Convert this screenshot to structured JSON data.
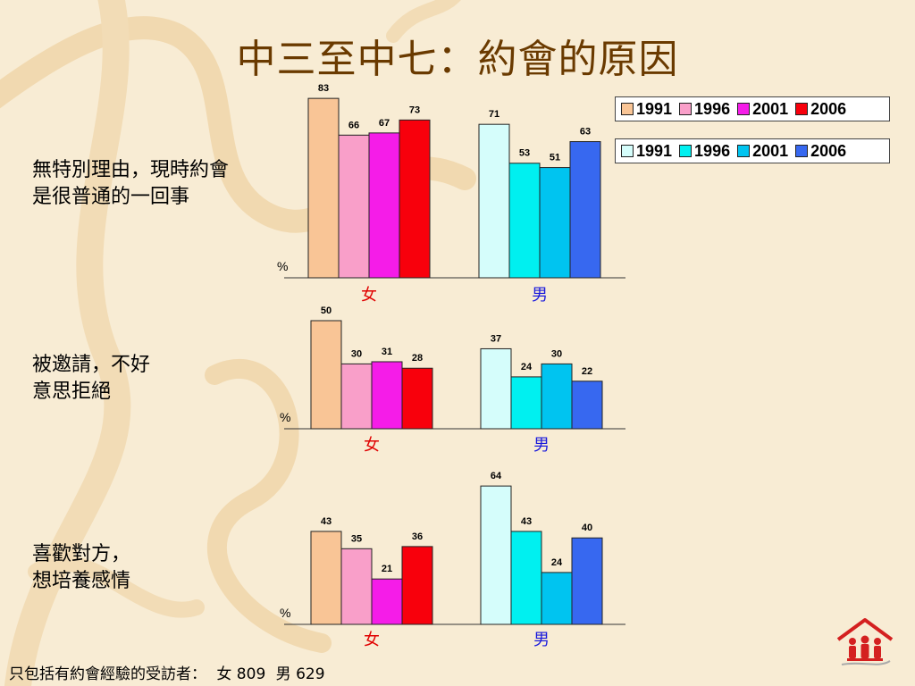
{
  "title": "中三至中七：約會的原因",
  "legend_female": {
    "items": [
      {
        "label": "1991",
        "color": "#f9c596"
      },
      {
        "label": "1996",
        "color": "#f99fc9"
      },
      {
        "label": "2001",
        "color": "#f51ce8"
      },
      {
        "label": "2006",
        "color": "#f8000c"
      }
    ]
  },
  "legend_male": {
    "items": [
      {
        "label": "1991",
        "color": "#d5fdfb"
      },
      {
        "label": "1996",
        "color": "#00f0f0"
      },
      {
        "label": "2001",
        "color": "#00c4f0"
      },
      {
        "label": "2006",
        "color": "#3768f0"
      }
    ]
  },
  "questions": [
    {
      "line1": "無特別理由，現時約會",
      "line2": "是很普通的一回事"
    },
    {
      "line1": "被邀請，不好",
      "line2": "意思拒絕"
    },
    {
      "line1": "喜歡對方，",
      "line2": "想培養感情"
    }
  ],
  "chart_data": [
    {
      "type": "bar",
      "ylabel": "%",
      "categories": [
        "女",
        "男"
      ],
      "category_colors": [
        "#e00000",
        "#1a1adc"
      ],
      "series": [
        {
          "name": "1991",
          "values": [
            83,
            71
          ]
        },
        {
          "name": "1996",
          "values": [
            66,
            53
          ]
        },
        {
          "name": "2001",
          "values": [
            67,
            51
          ]
        },
        {
          "name": "2006",
          "values": [
            73,
            63
          ]
        }
      ]
    },
    {
      "type": "bar",
      "ylabel": "%",
      "categories": [
        "女",
        "男"
      ],
      "category_colors": [
        "#e00000",
        "#1a1adc"
      ],
      "series": [
        {
          "name": "1991",
          "values": [
            50,
            37
          ]
        },
        {
          "name": "1996",
          "values": [
            30,
            24
          ]
        },
        {
          "name": "2001",
          "values": [
            31,
            30
          ]
        },
        {
          "name": "2006",
          "values": [
            28,
            22
          ]
        }
      ]
    },
    {
      "type": "bar",
      "ylabel": "%",
      "categories": [
        "女",
        "男"
      ],
      "category_colors": [
        "#e00000",
        "#1a1adc"
      ],
      "series": [
        {
          "name": "1991",
          "values": [
            43,
            64
          ]
        },
        {
          "name": "1996",
          "values": [
            35,
            43
          ]
        },
        {
          "name": "2001",
          "values": [
            21,
            24
          ]
        },
        {
          "name": "2006",
          "values": [
            36,
            40
          ]
        }
      ]
    }
  ],
  "footnote": {
    "prefix": "只包括有約會經驗的受訪者：",
    "female": "女 809",
    "male": "男 629"
  },
  "colors": {
    "background": "#f8ecd4",
    "title": "#6a3a00",
    "female_series": [
      "#f9c596",
      "#f99fc9",
      "#f51ce8",
      "#f8000c"
    ],
    "male_series": [
      "#d5fdfb",
      "#00f0f0",
      "#00c4f0",
      "#3768f0"
    ],
    "logo": "#d42020"
  },
  "icons": {
    "logo": "family-house-logo-icon"
  }
}
